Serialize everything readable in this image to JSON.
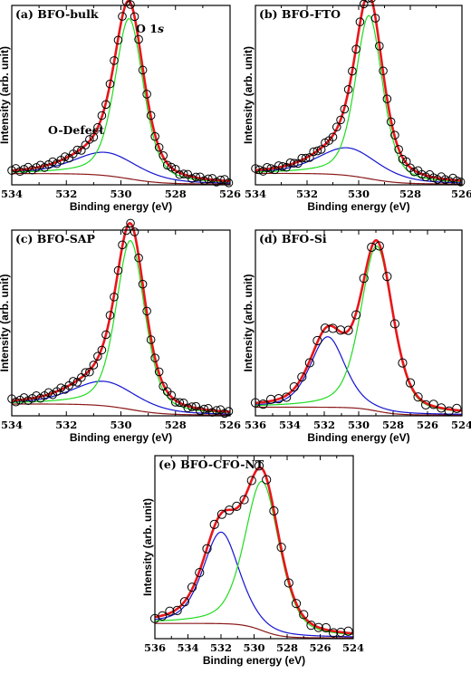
{
  "figure": {
    "common_xlabel": "Binding energy (eV)",
    "common_ylabel": "Intensity (arb. unit)",
    "colors": {
      "data": "#000000",
      "envelope": "#e8161a",
      "main_peak": "#1fdc1f",
      "defect_peak": "#1414d2",
      "background": "#8b1a1a"
    }
  },
  "chart_data": [
    {
      "type": "line",
      "panel": "a",
      "title": "(a) BFO-bulk",
      "xlabel": "Binding energy (eV)",
      "ylabel": "Intensity (arb. unit)",
      "xlim": [
        534,
        526
      ],
      "x_ticks": [
        534,
        532,
        530,
        528,
        526
      ],
      "y_ticks_labeled": false,
      "annotations": [
        {
          "text": "O 1s",
          "x": 529.2,
          "y": 1.02
        },
        {
          "text": "O-Defect",
          "x": 532.3,
          "y": 0.36
        }
      ],
      "model": {
        "main": {
          "center": 529.7,
          "fwhm": 1.25,
          "height": 1.0
        },
        "defect": {
          "center": 530.55,
          "fwhm": 2.8,
          "height": 0.145
        },
        "background": {
          "low": 0.005,
          "high": 0.07
        },
        "marker_step": 0.15,
        "yrange": [
          0,
          1.12
        ]
      },
      "series": [
        {
          "name": "Experimental",
          "style": "open-circles"
        },
        {
          "name": "Fitted envelope",
          "style": "line"
        },
        {
          "name": "O 1s",
          "style": "line"
        },
        {
          "name": "O-Defect",
          "style": "line"
        },
        {
          "name": "Background",
          "style": "line"
        }
      ]
    },
    {
      "type": "line",
      "panel": "b",
      "title": "(b) BFO-FTO",
      "xlabel": "Binding energy (eV)",
      "ylabel": "Intensity (arb. unit)",
      "xlim": [
        534,
        526
      ],
      "x_ticks": [
        534,
        532,
        530,
        528,
        526
      ],
      "y_ticks_labeled": false,
      "annotations": [],
      "model": {
        "main": {
          "center": 529.6,
          "fwhm": 1.25,
          "height": 1.0
        },
        "defect": {
          "center": 530.4,
          "fwhm": 2.8,
          "height": 0.17
        },
        "background": {
          "low": 0.005,
          "high": 0.07
        },
        "marker_step": 0.15,
        "yrange": [
          0,
          1.1
        ]
      },
      "series": [
        {
          "name": "Experimental",
          "style": "open-circles"
        },
        {
          "name": "Fitted envelope",
          "style": "line"
        },
        {
          "name": "O 1s",
          "style": "line"
        },
        {
          "name": "O-Defect",
          "style": "line"
        },
        {
          "name": "Background",
          "style": "line"
        }
      ]
    },
    {
      "type": "line",
      "panel": "c",
      "title": "(c) BFO-SAP",
      "xlabel": "Binding energy (eV)",
      "ylabel": "Intensity (arb. unit)",
      "xlim": [
        534,
        526
      ],
      "x_ticks": [
        534,
        532,
        530,
        528,
        526
      ],
      "y_ticks_labeled": false,
      "annotations": [],
      "model": {
        "main": {
          "center": 529.65,
          "fwhm": 1.25,
          "height": 1.0
        },
        "defect": {
          "center": 530.6,
          "fwhm": 2.8,
          "height": 0.145
        },
        "background": {
          "low": 0.005,
          "high": 0.07
        },
        "marker_step": 0.15,
        "yrange": [
          0,
          1.1
        ]
      },
      "series": [
        {
          "name": "Experimental",
          "style": "open-circles"
        },
        {
          "name": "Fitted envelope",
          "style": "line"
        },
        {
          "name": "O 1s",
          "style": "line"
        },
        {
          "name": "O-Defect",
          "style": "line"
        },
        {
          "name": "Background",
          "style": "line"
        }
      ]
    },
    {
      "type": "line",
      "panel": "d",
      "title": "(d) BFO-Si",
      "xlabel": "Binding energy (eV)",
      "ylabel": "Intensity (arb. unit)",
      "xlim": [
        536,
        524
      ],
      "x_ticks": [
        536,
        534,
        532,
        530,
        528,
        526,
        524
      ],
      "y_ticks_labeled": false,
      "annotations": [],
      "model": {
        "main": {
          "center": 528.95,
          "fwhm": 2.2,
          "height": 0.96
        },
        "defect": {
          "center": 531.8,
          "fwhm": 2.4,
          "height": 0.41
        },
        "background": {
          "low": 0.005,
          "high": 0.05
        },
        "marker_step": 0.45,
        "yrange": [
          0,
          1.08
        ]
      },
      "series": [
        {
          "name": "Experimental",
          "style": "open-circles"
        },
        {
          "name": "Fitted envelope",
          "style": "line"
        },
        {
          "name": "O 1s",
          "style": "line"
        },
        {
          "name": "O-Defect",
          "style": "line"
        },
        {
          "name": "Background",
          "style": "line"
        }
      ]
    },
    {
      "type": "line",
      "panel": "e",
      "title": "(e) BFO-CFO-NT",
      "xlabel": "Binding energy (eV)",
      "ylabel": "Intensity (arb. unit)",
      "xlim": [
        536,
        524
      ],
      "x_ticks": [
        536,
        534,
        532,
        530,
        528,
        526,
        524
      ],
      "y_ticks_labeled": false,
      "annotations": [],
      "model": {
        "main": {
          "center": 529.5,
          "fwhm": 2.5,
          "height": 0.88
        },
        "defect": {
          "center": 532.0,
          "fwhm": 2.6,
          "height": 0.54
        },
        "background": {
          "low": 0.005,
          "high": 0.09
        },
        "marker_step": 0.45,
        "yrange": [
          0,
          1.08
        ]
      },
      "series": [
        {
          "name": "Experimental",
          "style": "open-circles"
        },
        {
          "name": "Fitted envelope",
          "style": "line"
        },
        {
          "name": "O 1s",
          "style": "line"
        },
        {
          "name": "O-Defect",
          "style": "line"
        },
        {
          "name": "Background",
          "style": "line"
        }
      ]
    }
  ]
}
